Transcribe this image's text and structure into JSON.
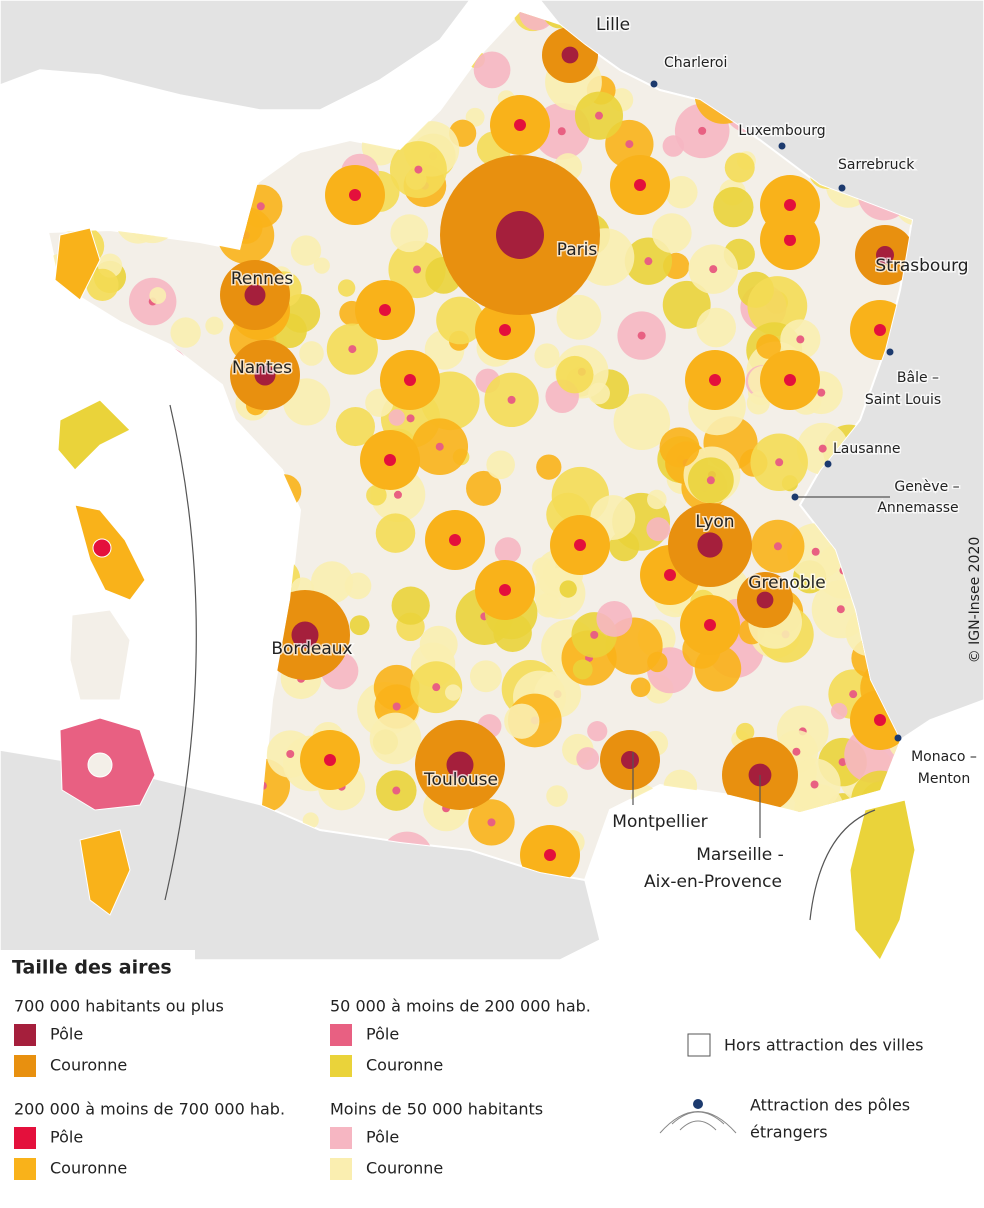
{
  "map": {
    "labels": [
      "Lille",
      "Charleroi",
      "Luxembourg",
      "Sarrebruck",
      "Paris",
      "Strasbourg",
      "Rennes",
      "Nantes",
      "Bâle –",
      "Saint Louis",
      "Lausanne",
      "Genève –",
      "Annemasse",
      "Lyon",
      "Grenoble",
      "Bordeaux",
      "Toulouse",
      "Montpellier",
      "Marseille -",
      "Aix-en-Provence",
      "Monaco –",
      "Menton"
    ],
    "copyright": "© IGN-Insee 2020"
  },
  "legend": {
    "title": "Taille des aires",
    "groups": [
      {
        "heading": "700 000 habitants ou plus",
        "items": [
          {
            "label": "Pôle",
            "color": "#a51f3c"
          },
          {
            "label": "Couronne",
            "color": "#e8900f"
          }
        ]
      },
      {
        "heading": "50 000 à moins de 200 000 hab.",
        "items": [
          {
            "label": "Pôle",
            "color": "#e86082"
          },
          {
            "label": "Couronne",
            "color": "#ead33a"
          }
        ]
      },
      {
        "heading": "200 000 à moins de 700 000 hab.",
        "items": [
          {
            "label": "Pôle",
            "color": "#e4103c"
          },
          {
            "label": "Couronne",
            "color": "#f9b21a"
          }
        ]
      },
      {
        "heading": "Moins de 50 000 habitants",
        "items": [
          {
            "label": "Pôle",
            "color": "#f6b6c2"
          },
          {
            "label": "Couronne",
            "color": "#faeeb0"
          }
        ]
      }
    ],
    "hors": "Hors attraction des villes",
    "etrangers": [
      "Attraction des pôles",
      "étrangers"
    ]
  }
}
